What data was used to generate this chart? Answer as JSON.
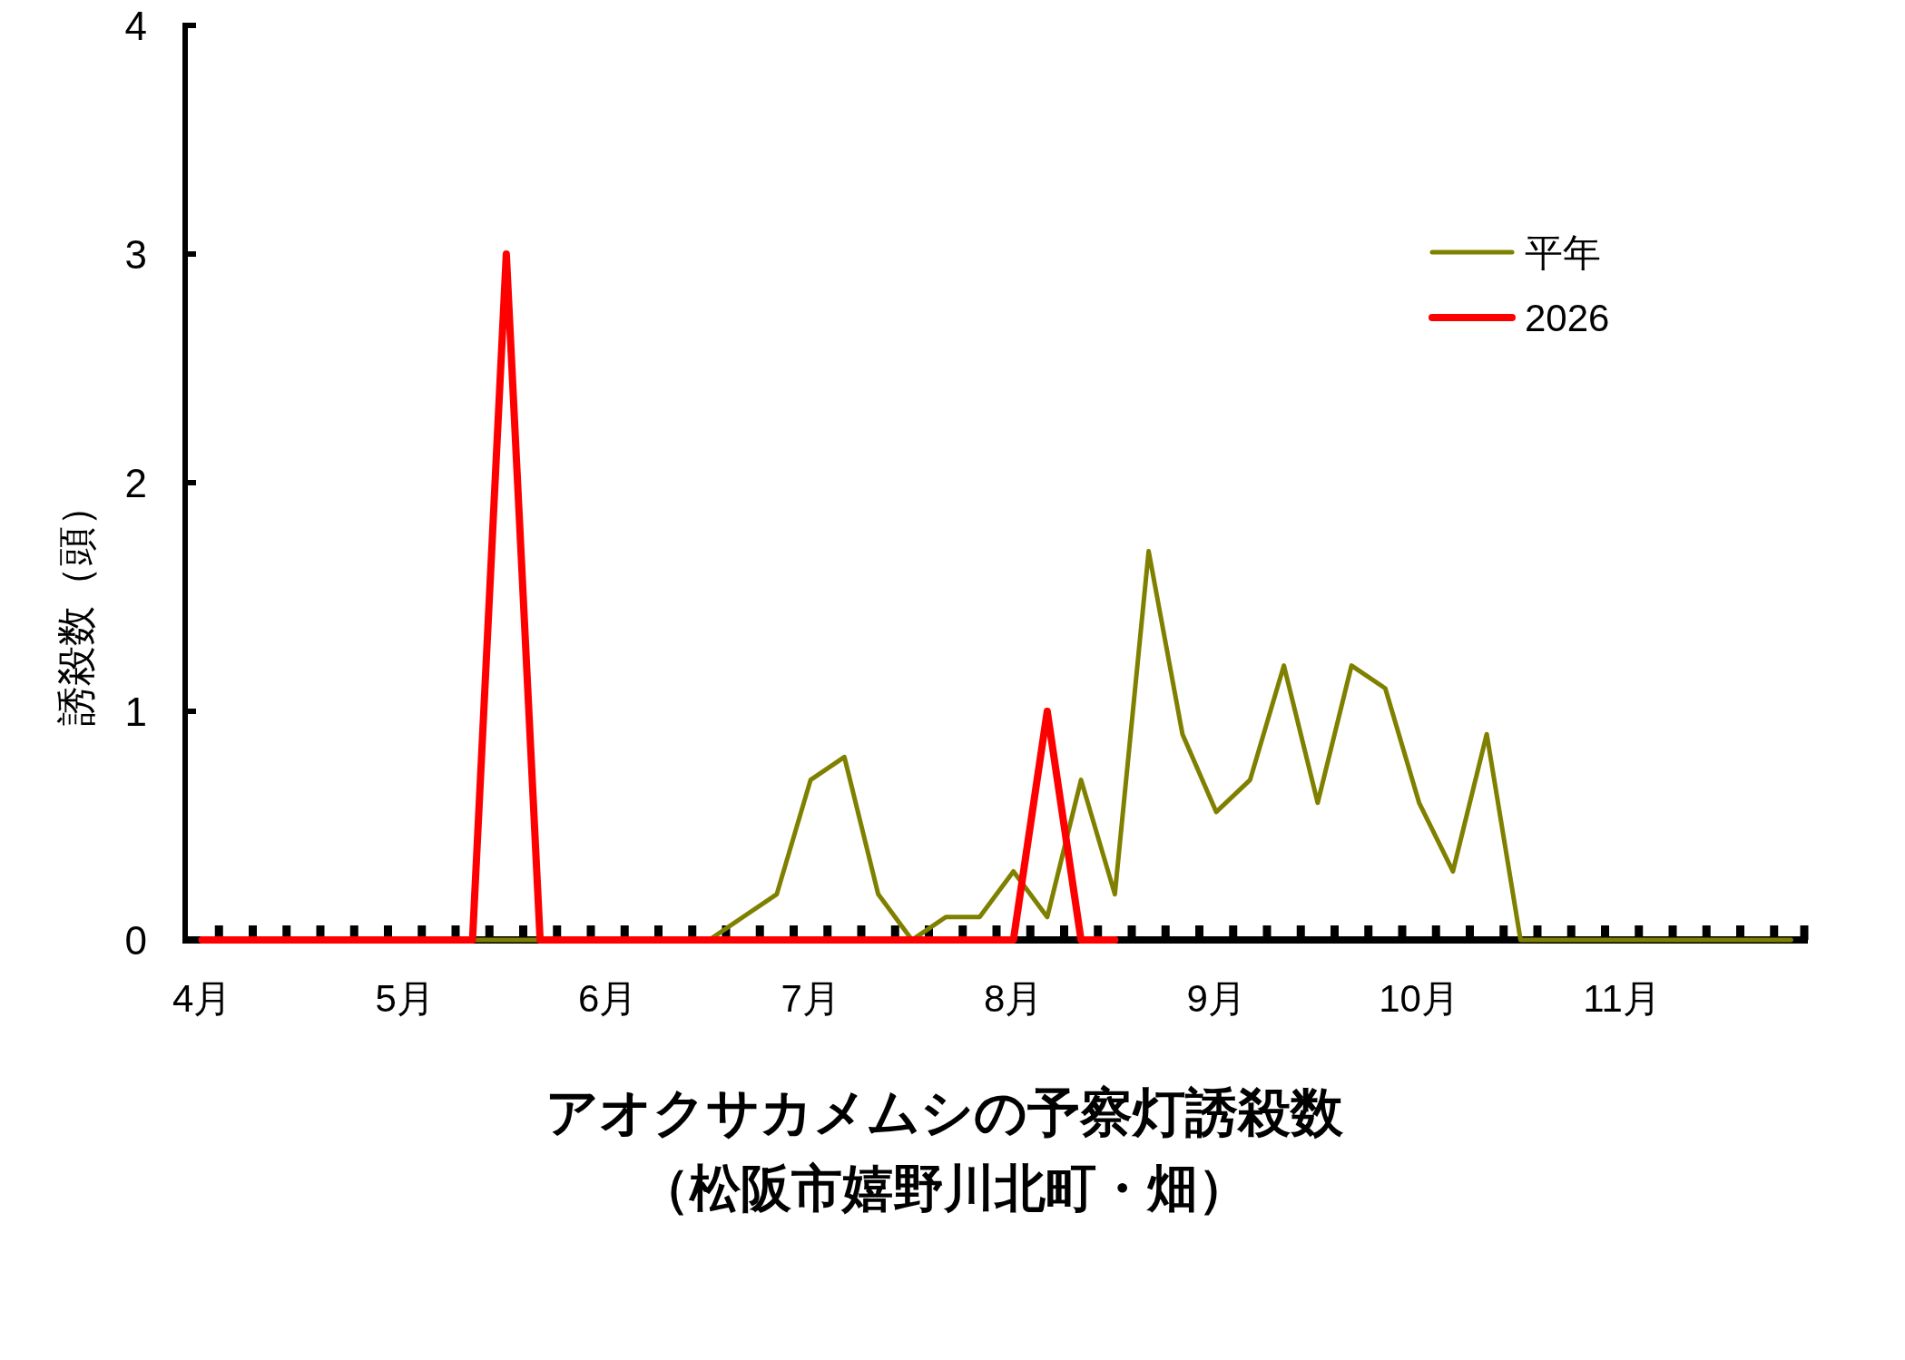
{
  "chart_data": {
    "type": "line",
    "title": "アオクサカメムシの予察灯誘殺数",
    "subtitle": "（松阪市嬉野川北町・畑）",
    "ylabel": "誘殺数（頭）",
    "categories": [
      "4月",
      null,
      null,
      null,
      null,
      null,
      "5月",
      null,
      null,
      null,
      null,
      null,
      "6月",
      null,
      null,
      null,
      null,
      null,
      "7月",
      null,
      null,
      null,
      null,
      null,
      "8月",
      null,
      null,
      null,
      null,
      null,
      "9月",
      null,
      null,
      null,
      null,
      null,
      "10月",
      null,
      null,
      null,
      null,
      null,
      "11月",
      null,
      null,
      null,
      null,
      null
    ],
    "series": [
      {
        "name": "平年",
        "color": "#808000",
        "values": [
          null,
          null,
          null,
          null,
          null,
          null,
          null,
          0,
          0,
          0,
          0,
          0,
          0,
          0,
          0,
          0,
          0.1,
          0.2,
          0.7,
          0.8,
          0.2,
          0,
          0.1,
          0.1,
          0.3,
          0.1,
          0.7,
          0.2,
          1.7,
          0.9,
          0.56,
          0.7,
          1.2,
          0.6,
          1.2,
          1.1,
          0.6,
          0.3,
          0.9,
          0,
          0,
          0,
          0,
          0,
          0,
          0,
          0,
          0
        ]
      },
      {
        "name": "2026",
        "color": "#ff0000",
        "values": [
          0,
          0,
          0,
          0,
          0,
          0,
          0,
          0,
          0,
          3,
          0,
          0,
          0,
          0,
          0,
          0,
          0,
          0,
          0,
          0,
          0,
          0,
          0,
          0,
          0,
          1,
          0,
          0,
          null,
          null,
          null,
          null,
          null,
          null,
          null,
          null,
          null,
          null,
          null,
          null,
          null,
          null,
          null,
          null,
          null,
          null,
          null,
          null
        ]
      }
    ],
    "ylim": [
      0,
      4
    ],
    "yticks": [
      0,
      1,
      2,
      3,
      4
    ],
    "legend": "top right"
  }
}
